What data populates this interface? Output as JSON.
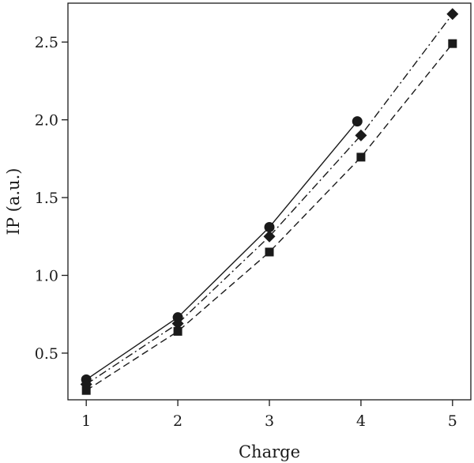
{
  "chart_data": {
    "type": "line",
    "xlabel": "Charge",
    "ylabel": "IP (a.u.)",
    "xlim": [
      0.8,
      5.2
    ],
    "ylim": [
      0.2,
      2.75
    ],
    "x_ticks": [
      "1",
      "2",
      "3",
      "4",
      "5"
    ],
    "y_ticks": [
      "0.5",
      "1.0",
      "1.5",
      "2.0",
      "2.5"
    ],
    "grid": false,
    "legend": "none",
    "series": [
      {
        "marker": "circle",
        "line_style": "solid",
        "color": "#1a1a1a",
        "x": [
          1,
          2,
          3,
          3.96
        ],
        "y": [
          0.33,
          0.73,
          1.31,
          1.99
        ]
      },
      {
        "marker": "diamond",
        "line_style": "dash-dot",
        "color": "#1a1a1a",
        "x": [
          1,
          2,
          3,
          4,
          5
        ],
        "y": [
          0.3,
          0.69,
          1.25,
          1.9,
          2.68
        ]
      },
      {
        "marker": "square",
        "line_style": "dashed",
        "color": "#1a1a1a",
        "x": [
          1,
          2,
          3,
          4,
          5
        ],
        "y": [
          0.26,
          0.64,
          1.15,
          1.76,
          2.49
        ]
      }
    ]
  }
}
